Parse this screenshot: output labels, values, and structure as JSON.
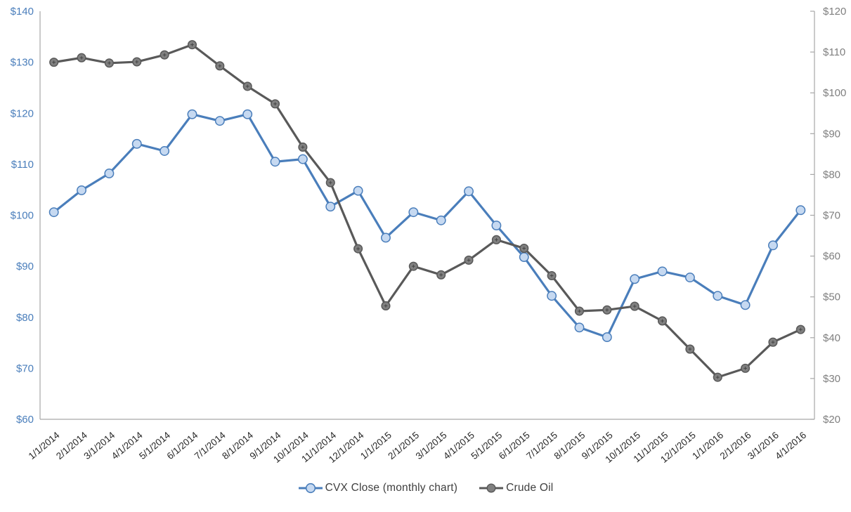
{
  "chart_data": {
    "type": "line",
    "title": "",
    "background": "#FFFFFF",
    "grid": false,
    "legend_position": "bottom",
    "categories": [
      "1/1/2014",
      "2/1/2014",
      "3/1/2014",
      "4/1/2014",
      "5/1/2014",
      "6/1/2014",
      "7/1/2014",
      "8/1/2014",
      "9/1/2014",
      "10/1/2014",
      "11/1/2014",
      "12/1/2014",
      "1/1/2015",
      "2/1/2015",
      "3/1/2015",
      "4/1/2015",
      "5/1/2015",
      "6/1/2015",
      "7/1/2015",
      "8/1/2015",
      "9/1/2015",
      "10/1/2015",
      "11/1/2015",
      "12/1/2015",
      "1/1/2016",
      "2/1/2016",
      "3/1/2016",
      "4/1/2016"
    ],
    "series": [
      {
        "id": "cvx-close",
        "name": "CVX Close (monthly chart)",
        "axis": "left",
        "line_color": "#4A7EBB",
        "marker_fill": "#C6D9F1",
        "marker_border": "#4A7EBB",
        "marker_cross": false,
        "values": [
          100.6,
          104.9,
          108.2,
          114.0,
          112.6,
          119.8,
          118.5,
          119.8,
          110.5,
          111.0,
          101.7,
          104.8,
          95.6,
          100.6,
          99.0,
          104.7,
          98.0,
          91.8,
          84.2,
          78.0,
          76.1,
          87.5,
          89.0,
          87.8,
          84.2,
          82.4,
          94.1,
          101.0
        ]
      },
      {
        "id": "crude-oil",
        "name": "Crude Oil",
        "axis": "right",
        "line_color": "#595959",
        "marker_fill": "#808080",
        "marker_border": "#595959",
        "marker_cross": true,
        "values": [
          107.5,
          108.6,
          107.3,
          107.6,
          109.3,
          111.8,
          106.6,
          101.6,
          97.3,
          86.7,
          78.0,
          61.8,
          47.8,
          57.5,
          55.4,
          59.0,
          64.0,
          61.9,
          55.2,
          46.5,
          46.8,
          47.7,
          44.1,
          37.2,
          30.3,
          32.5,
          38.9,
          42.0
        ]
      }
    ],
    "axes": {
      "left": {
        "min": 60,
        "max": 140,
        "step": 10,
        "label_color": "#4A7EBB",
        "tick_labels": [
          "$60",
          "$70",
          "$80",
          "$90",
          "$100",
          "$110",
          "$120",
          "$130",
          "$140"
        ]
      },
      "right": {
        "min": 20,
        "max": 120,
        "step": 10,
        "label_color": "#7F7F7F",
        "tick_labels": [
          "$20",
          "$30",
          "$40",
          "$50",
          "$60",
          "$70",
          "$80",
          "$90",
          "$100",
          "$110",
          "$120"
        ]
      },
      "x": {
        "label_color": "#262626",
        "label_rotation": -40
      }
    }
  }
}
